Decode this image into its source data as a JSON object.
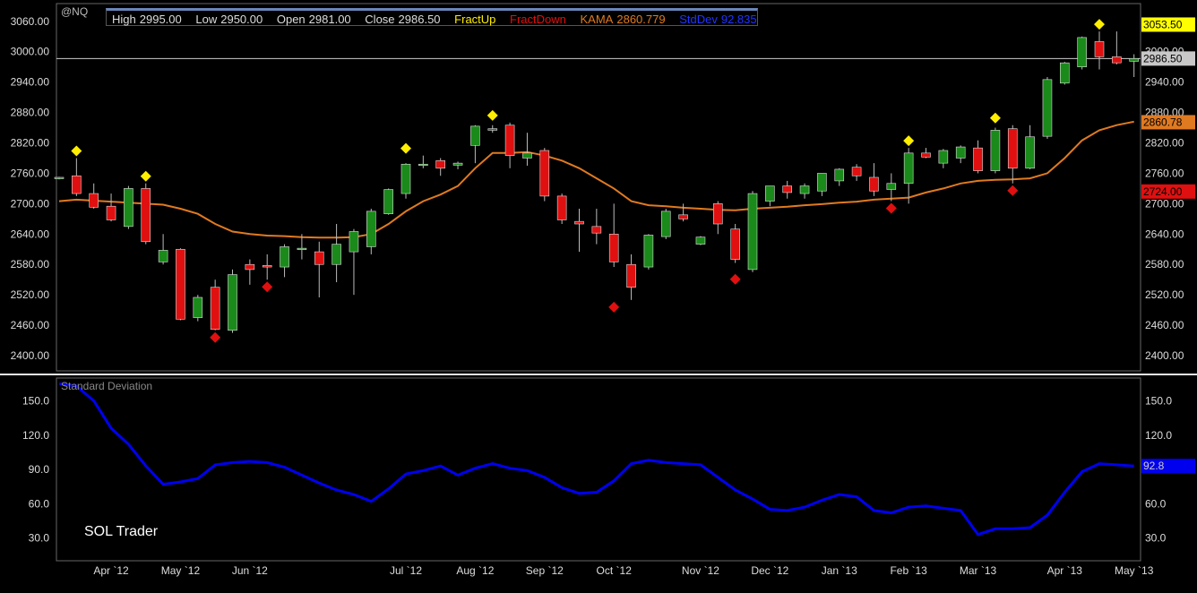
{
  "symbol": "@NQ",
  "header": {
    "high_label": "High",
    "high": "2995.00",
    "low_label": "Low",
    "low": "2950.00",
    "open_label": "Open",
    "open": "2981.00",
    "close_label": "Close",
    "close": "2986.50",
    "fractup": "FractUp",
    "fractdown": "FractDown",
    "kama_label": "KAMA",
    "kama": "2860.779",
    "stddev_label": "StdDev",
    "stddev": "92.835"
  },
  "indicator_title": "Standard Deviation",
  "watermark": "SOL Trader",
  "colors": {
    "up": "#1a8a1a",
    "down": "#e01010",
    "kama": "#e07a20",
    "stddev": "#0000ee",
    "fract_up": "#ffee00",
    "fract_down": "#e01010",
    "grid_line": "#cccccc"
  },
  "chart_data": [
    {
      "type": "candlestick",
      "title": "@NQ",
      "y_ticks": [
        2400,
        2460,
        2520,
        2580,
        2640,
        2700,
        2760,
        2820,
        2880,
        2940,
        3000,
        3060
      ],
      "ylim": [
        2370,
        3095
      ],
      "x_labels": [
        {
          "label": "Apr `12",
          "index": 3
        },
        {
          "label": "May `12",
          "index": 7
        },
        {
          "label": "Jun `12",
          "index": 11
        },
        {
          "label": "Jul `12",
          "index": 20
        },
        {
          "label": "Aug `12",
          "index": 24
        },
        {
          "label": "Sep `12",
          "index": 28
        },
        {
          "label": "Oct `12",
          "index": 32
        },
        {
          "label": "Nov `12",
          "index": 37
        },
        {
          "label": "Dec `12",
          "index": 41
        },
        {
          "label": "Jan `13",
          "index": 45
        },
        {
          "label": "Feb `13",
          "index": 49
        },
        {
          "label": "Mar `13",
          "index": 53
        },
        {
          "label": "Apr `13",
          "index": 58
        },
        {
          "label": "May `13",
          "index": 62
        }
      ],
      "candles": [
        {
          "o": 2750,
          "h": 2753,
          "l": 2748,
          "c": 2752
        },
        {
          "o": 2755,
          "h": 2790,
          "l": 2715,
          "c": 2720
        },
        {
          "o": 2720,
          "h": 2740,
          "l": 2690,
          "c": 2693
        },
        {
          "o": 2695,
          "h": 2720,
          "l": 2665,
          "c": 2668
        },
        {
          "o": 2655,
          "h": 2735,
          "l": 2650,
          "c": 2730
        },
        {
          "o": 2730,
          "h": 2740,
          "l": 2620,
          "c": 2625
        },
        {
          "o": 2585,
          "h": 2640,
          "l": 2580,
          "c": 2608
        },
        {
          "o": 2610,
          "h": 2612,
          "l": 2470,
          "c": 2472
        },
        {
          "o": 2475,
          "h": 2520,
          "l": 2468,
          "c": 2515
        },
        {
          "o": 2535,
          "h": 2550,
          "l": 2450,
          "c": 2452
        },
        {
          "o": 2450,
          "h": 2570,
          "l": 2445,
          "c": 2560
        },
        {
          "o": 2580,
          "h": 2590,
          "l": 2540,
          "c": 2570
        },
        {
          "o": 2578,
          "h": 2600,
          "l": 2550,
          "c": 2575
        },
        {
          "o": 2575,
          "h": 2620,
          "l": 2555,
          "c": 2615
        },
        {
          "o": 2612,
          "h": 2640,
          "l": 2590,
          "c": 2612
        },
        {
          "o": 2605,
          "h": 2625,
          "l": 2515,
          "c": 2580
        },
        {
          "o": 2580,
          "h": 2660,
          "l": 2545,
          "c": 2620
        },
        {
          "o": 2605,
          "h": 2650,
          "l": 2520,
          "c": 2645
        },
        {
          "o": 2615,
          "h": 2690,
          "l": 2600,
          "c": 2685
        },
        {
          "o": 2680,
          "h": 2730,
          "l": 2678,
          "c": 2728
        },
        {
          "o": 2720,
          "h": 2780,
          "l": 2710,
          "c": 2778
        },
        {
          "o": 2776,
          "h": 2795,
          "l": 2770,
          "c": 2778
        },
        {
          "o": 2785,
          "h": 2790,
          "l": 2755,
          "c": 2770
        },
        {
          "o": 2776,
          "h": 2783,
          "l": 2768,
          "c": 2780
        },
        {
          "o": 2815,
          "h": 2855,
          "l": 2780,
          "c": 2853
        },
        {
          "o": 2845,
          "h": 2855,
          "l": 2840,
          "c": 2848
        },
        {
          "o": 2855,
          "h": 2860,
          "l": 2770,
          "c": 2795
        },
        {
          "o": 2790,
          "h": 2840,
          "l": 2775,
          "c": 2800
        },
        {
          "o": 2805,
          "h": 2810,
          "l": 2705,
          "c": 2715
        },
        {
          "o": 2715,
          "h": 2720,
          "l": 2660,
          "c": 2668
        },
        {
          "o": 2665,
          "h": 2690,
          "l": 2605,
          "c": 2660
        },
        {
          "o": 2655,
          "h": 2690,
          "l": 2620,
          "c": 2642
        },
        {
          "o": 2640,
          "h": 2700,
          "l": 2575,
          "c": 2585
        },
        {
          "o": 2580,
          "h": 2600,
          "l": 2510,
          "c": 2535
        },
        {
          "o": 2575,
          "h": 2640,
          "l": 2570,
          "c": 2638
        },
        {
          "o": 2635,
          "h": 2690,
          "l": 2630,
          "c": 2685
        },
        {
          "o": 2678,
          "h": 2700,
          "l": 2665,
          "c": 2670
        },
        {
          "o": 2620,
          "h": 2636,
          "l": 2618,
          "c": 2634
        },
        {
          "o": 2700,
          "h": 2705,
          "l": 2640,
          "c": 2660
        },
        {
          "o": 2650,
          "h": 2660,
          "l": 2583,
          "c": 2590
        },
        {
          "o": 2570,
          "h": 2725,
          "l": 2565,
          "c": 2720
        },
        {
          "o": 2705,
          "h": 2735,
          "l": 2695,
          "c": 2735
        },
        {
          "o": 2735,
          "h": 2745,
          "l": 2710,
          "c": 2722
        },
        {
          "o": 2720,
          "h": 2740,
          "l": 2710,
          "c": 2735
        },
        {
          "o": 2725,
          "h": 2760,
          "l": 2715,
          "c": 2760
        },
        {
          "o": 2745,
          "h": 2770,
          "l": 2735,
          "c": 2768
        },
        {
          "o": 2772,
          "h": 2778,
          "l": 2745,
          "c": 2755
        },
        {
          "o": 2752,
          "h": 2780,
          "l": 2715,
          "c": 2725
        },
        {
          "o": 2728,
          "h": 2760,
          "l": 2705,
          "c": 2740
        },
        {
          "o": 2740,
          "h": 2810,
          "l": 2700,
          "c": 2800
        },
        {
          "o": 2800,
          "h": 2810,
          "l": 2790,
          "c": 2792
        },
        {
          "o": 2780,
          "h": 2808,
          "l": 2770,
          "c": 2805
        },
        {
          "o": 2790,
          "h": 2815,
          "l": 2780,
          "c": 2812
        },
        {
          "o": 2810,
          "h": 2825,
          "l": 2760,
          "c": 2765
        },
        {
          "o": 2765,
          "h": 2850,
          "l": 2760,
          "c": 2845
        },
        {
          "o": 2848,
          "h": 2855,
          "l": 2740,
          "c": 2770
        },
        {
          "o": 2770,
          "h": 2855,
          "l": 2768,
          "c": 2832
        },
        {
          "o": 2833,
          "h": 2950,
          "l": 2828,
          "c": 2945
        },
        {
          "o": 2938,
          "h": 2980,
          "l": 2935,
          "c": 2978
        },
        {
          "o": 2970,
          "h": 3030,
          "l": 2965,
          "c": 3028
        },
        {
          "o": 3020,
          "h": 3040,
          "l": 2965,
          "c": 2990
        },
        {
          "o": 2990,
          "h": 3040,
          "l": 2975,
          "c": 2978
        },
        {
          "o": 2981,
          "h": 2995,
          "l": 2950,
          "c": 2986.5
        }
      ],
      "kama": [
        2705,
        2708,
        2706,
        2704,
        2702,
        2700,
        2698,
        2690,
        2680,
        2660,
        2645,
        2640,
        2637,
        2636,
        2634,
        2633,
        2633,
        2634,
        2640,
        2660,
        2685,
        2705,
        2718,
        2735,
        2770,
        2800,
        2800,
        2802,
        2795,
        2785,
        2770,
        2750,
        2730,
        2705,
        2697,
        2695,
        2692,
        2690,
        2688,
        2687,
        2690,
        2692,
        2694,
        2697,
        2699,
        2702,
        2704,
        2708,
        2710,
        2712,
        2722,
        2730,
        2740,
        2745,
        2747,
        2748,
        2750,
        2760,
        2790,
        2825,
        2845,
        2855,
        2862
      ],
      "fractals_up": [
        {
          "index": 1,
          "value": 2790
        },
        {
          "index": 5,
          "value": 2740
        },
        {
          "index": 20,
          "value": 2795
        },
        {
          "index": 25,
          "value": 2860
        },
        {
          "index": 49,
          "value": 2810
        },
        {
          "index": 54,
          "value": 2855
        },
        {
          "index": 60,
          "value": 3040
        }
      ],
      "fractals_down": [
        {
          "index": 9,
          "value": 2450
        },
        {
          "index": 12,
          "value": 2550
        },
        {
          "index": 32,
          "value": 2510
        },
        {
          "index": 39,
          "value": 2565
        },
        {
          "index": 48,
          "value": 2705
        },
        {
          "index": 55,
          "value": 2740
        }
      ],
      "price_labels": [
        {
          "text": "3053.50",
          "value": 3053.5,
          "bg": "#ffff00",
          "fg": "#000000"
        },
        {
          "text": "2986.50",
          "value": 2986.5,
          "bg": "#c8c8c8",
          "fg": "#000000"
        },
        {
          "text": "2860.78",
          "value": 2860.78,
          "bg": "#e07a20",
          "fg": "#000000"
        },
        {
          "text": "2724.00",
          "value": 2724,
          "bg": "#e01010",
          "fg": "#000000"
        }
      ],
      "reference_line": 2986.5
    },
    {
      "type": "line",
      "title": "Standard Deviation",
      "y_ticks": [
        30,
        60,
        90,
        120,
        150
      ],
      "ylim": [
        10,
        170
      ],
      "series": [
        {
          "name": "StdDev",
          "values": [
            165,
            163,
            150,
            126,
            112,
            93,
            77,
            79,
            82,
            94,
            96,
            97,
            96,
            92,
            85,
            78,
            72,
            68,
            62,
            73,
            86,
            89,
            93,
            85,
            91,
            95,
            91,
            89,
            83,
            74,
            69,
            70,
            80,
            95,
            98,
            96,
            95,
            94,
            83,
            72,
            64,
            55,
            54,
            57,
            63,
            68,
            66,
            54,
            52,
            57,
            58,
            56,
            54,
            33,
            38,
            38,
            39,
            50,
            70,
            88,
            95,
            94,
            93
          ]
        }
      ],
      "value_label": "92.8"
    }
  ]
}
